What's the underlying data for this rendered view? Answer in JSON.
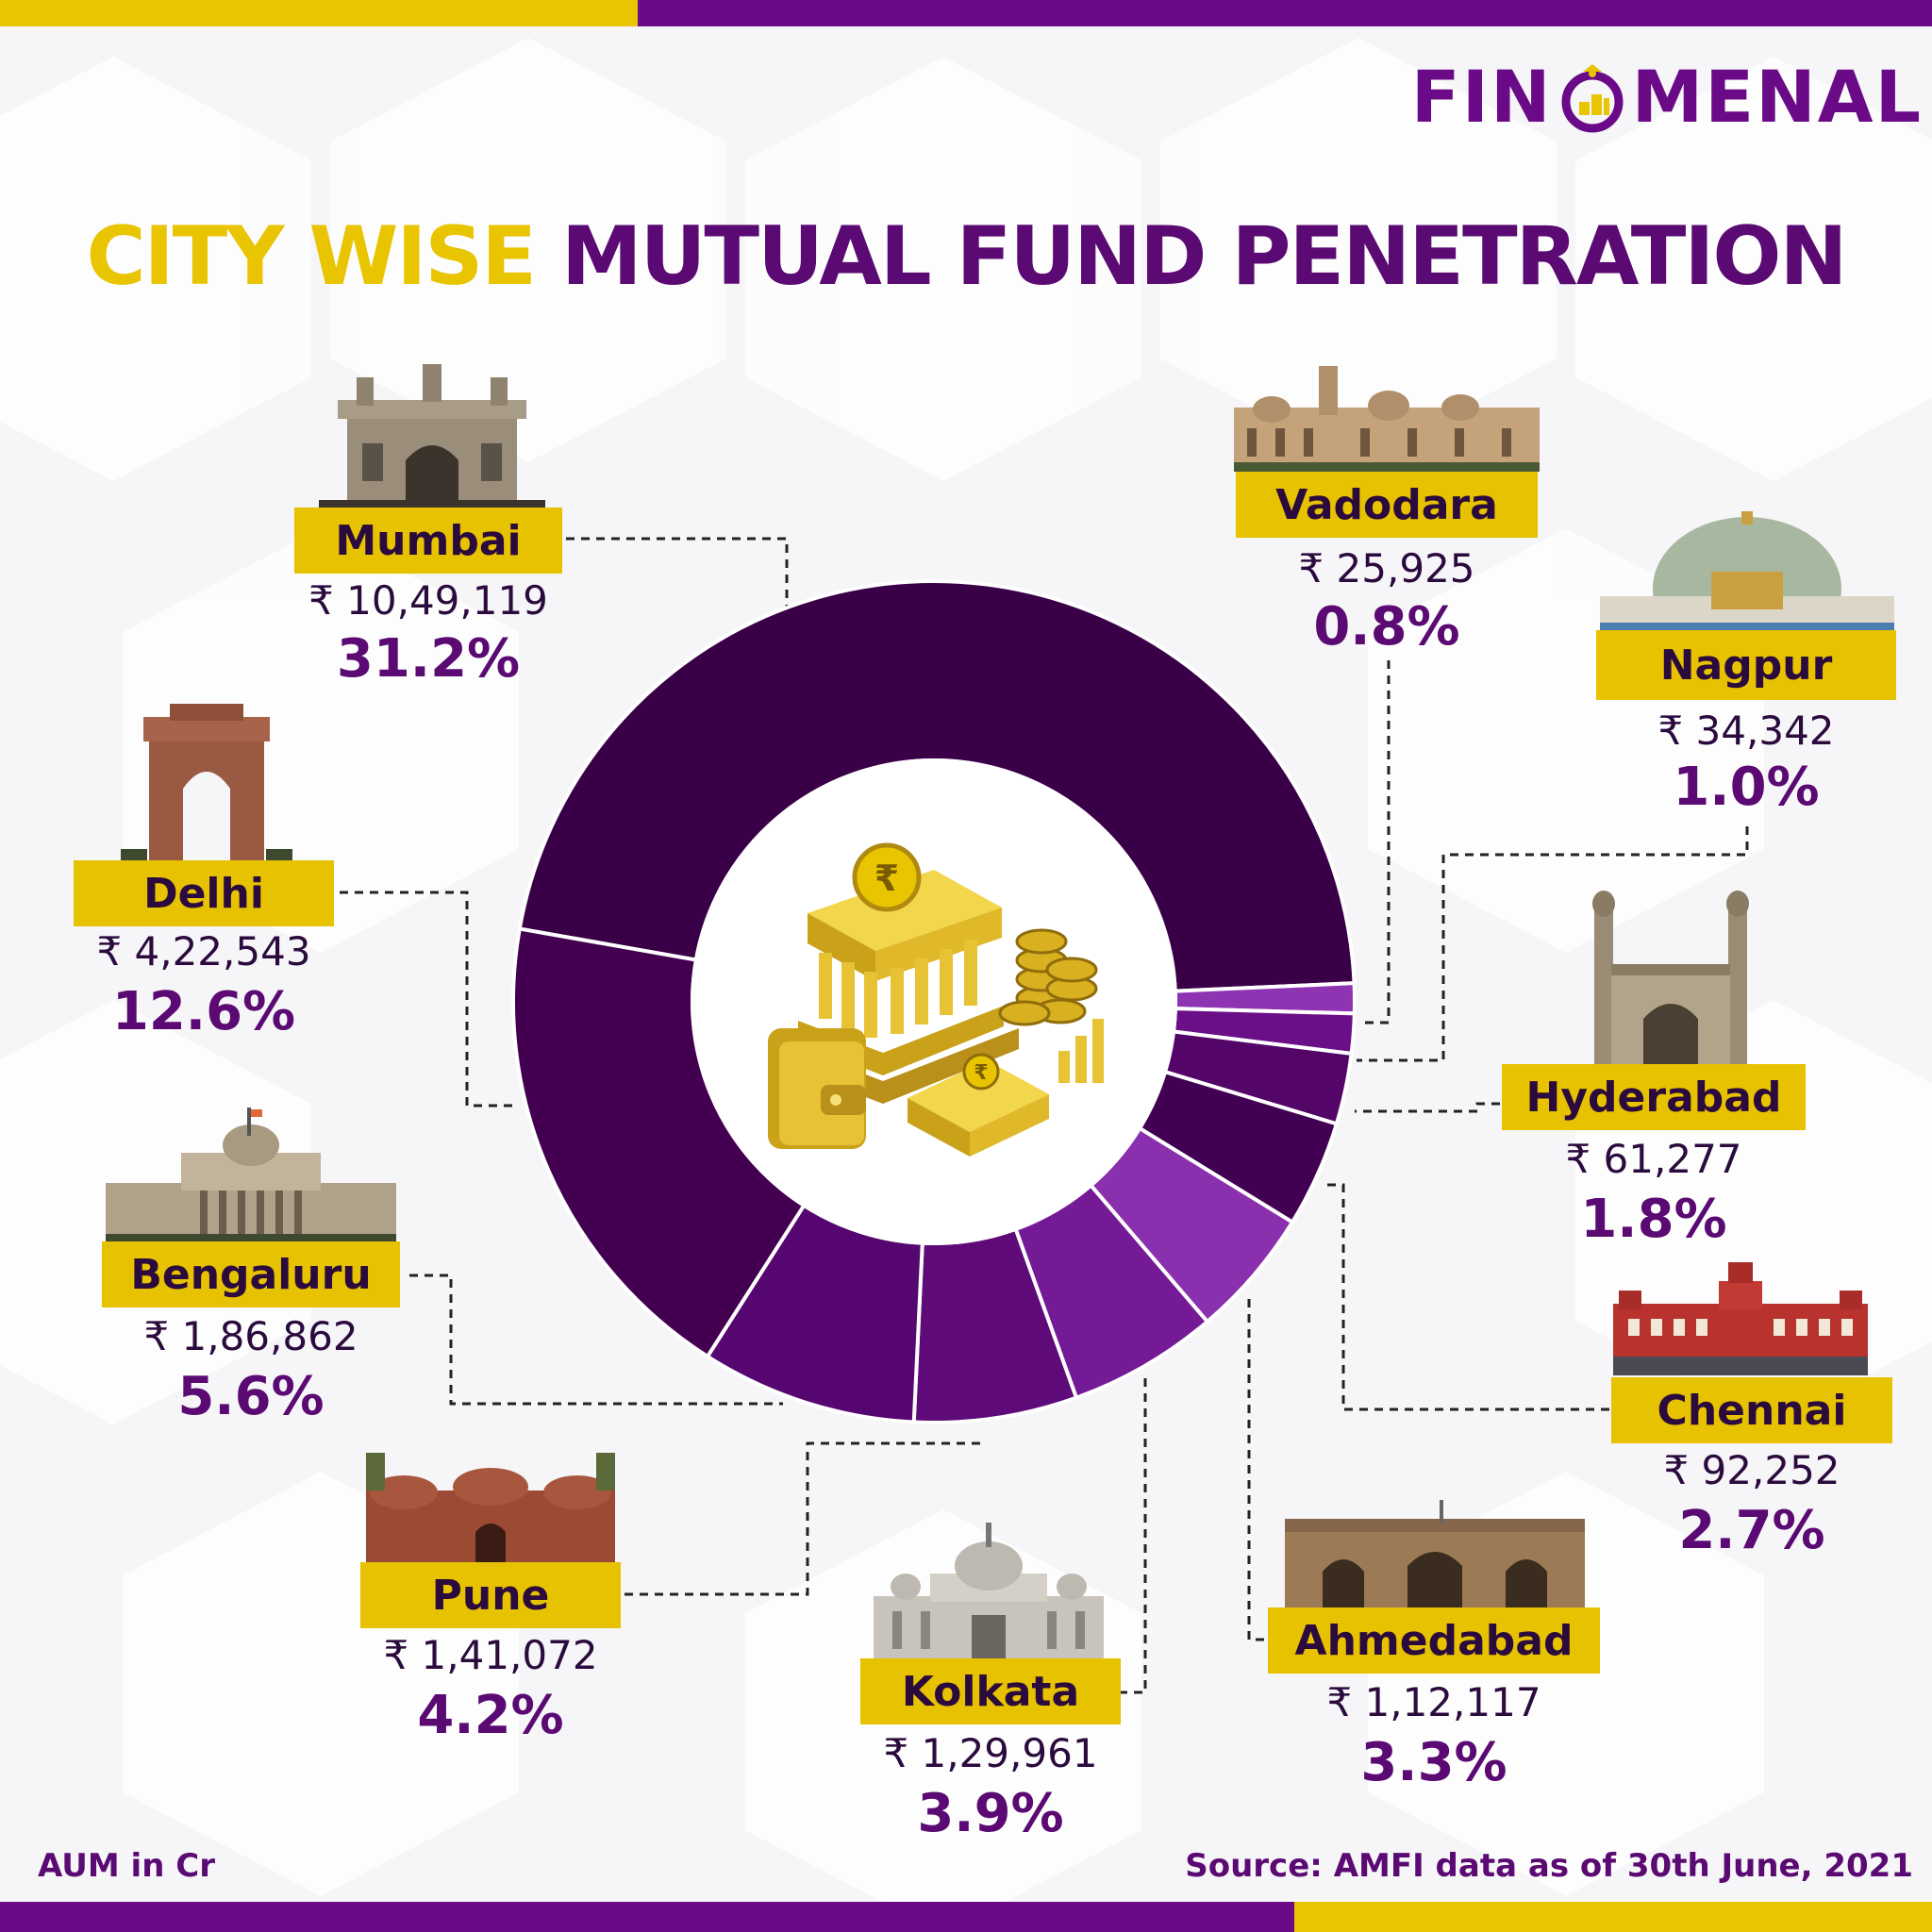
{
  "brand": {
    "name_left": "FIN",
    "name_right": "MENAL"
  },
  "title": {
    "part1": "CITY WISE",
    "part2": "MUTUAL FUND PENETRATION"
  },
  "footer": {
    "unit_note": "AUM in Cr",
    "source": "Source: AMFI data as of 30th June, 2021"
  },
  "colors": {
    "accent_yellow": "#e9c400",
    "label_yellow": "#e6c200",
    "brand_purple": "#6a0a87",
    "dark_purple": "#3a0047"
  },
  "chart_data": {
    "type": "pie",
    "variant": "donut",
    "currency_symbol": "₹",
    "slices": [
      {
        "city": "Mumbai",
        "aum": "₹ 10,49,119",
        "value": 1049119,
        "pct_label": "31.2%",
        "pct": 31.2,
        "color": "#3a0047"
      },
      {
        "city": "Vadodara",
        "aum": "₹ 25,925",
        "value": 25925,
        "pct_label": "0.8%",
        "pct": 0.8,
        "color": "#8e34b3"
      },
      {
        "city": "Nagpur",
        "aum": "₹ 34,342",
        "value": 34342,
        "pct_label": "1.0%",
        "pct": 1.0,
        "color": "#6a0f88"
      },
      {
        "city": "Hyderabad",
        "aum": "₹ 61,277",
        "value": 61277,
        "pct_label": "1.8%",
        "pct": 1.8,
        "color": "#540668"
      },
      {
        "city": "Chennai",
        "aum": "₹ 92,252",
        "value": 92252,
        "pct_label": "2.7%",
        "pct": 2.7,
        "color": "#420052"
      },
      {
        "city": "Ahmedabad",
        "aum": "₹ 1,12,117",
        "value": 112117,
        "pct_label": "3.3%",
        "pct": 3.3,
        "color": "#8a2fae"
      },
      {
        "city": "Kolkata",
        "aum": "₹ 1,29,961",
        "value": 129961,
        "pct_label": "3.9%",
        "pct": 3.9,
        "color": "#751a96"
      },
      {
        "city": "Pune",
        "aum": "₹ 1,41,072",
        "value": 141072,
        "pct_label": "4.2%",
        "pct": 4.2,
        "color": "#5e0a78"
      },
      {
        "city": "Bengaluru",
        "aum": "₹ 1,86,862",
        "value": 186862,
        "pct_label": "5.6%",
        "pct": 5.6,
        "color": "#560670"
      },
      {
        "city": "Delhi",
        "aum": "₹ 4,22,543",
        "value": 422543,
        "pct_label": "12.6%",
        "pct": 12.6,
        "color": "#440050"
      }
    ]
  }
}
